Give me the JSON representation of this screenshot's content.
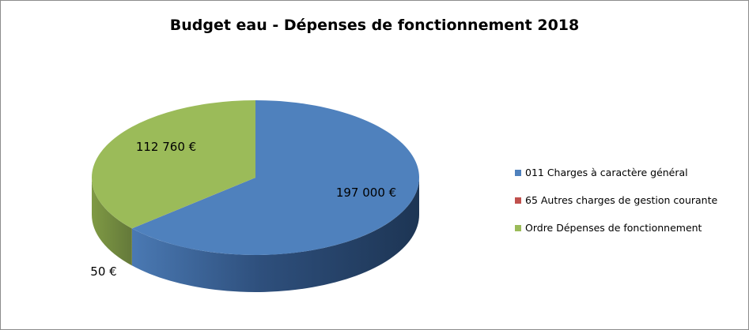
{
  "chart_data": {
    "type": "pie",
    "title": "Budget eau - Dépenses de fonctionnement 2018",
    "categories": [
      "011 Charges à caractère général",
      "65 Autres charges de gestion courante",
      "Ordre Dépenses de fonctionnement"
    ],
    "values": [
      197000,
      50,
      112760
    ],
    "data_labels": [
      "197 000 €",
      "50 €",
      "112 760 €"
    ],
    "colors": [
      "#4f81bd",
      "#c0504d",
      "#9bbb59"
    ],
    "style": "3d",
    "legend": "right"
  }
}
